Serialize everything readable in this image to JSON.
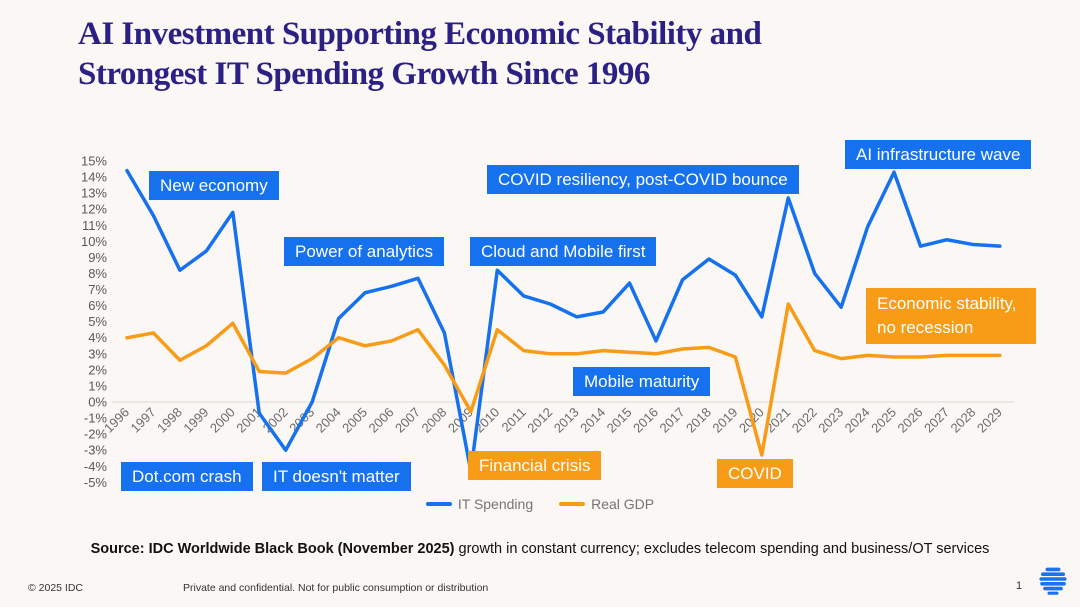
{
  "header": {
    "line1": "AI Investment Supporting Economic Stability and",
    "line2": "Strongest IT Spending Growth Since 1996"
  },
  "chart_data": {
    "type": "line",
    "title": "AI Investment Supporting Economic Stability and Strongest IT Spending Growth Since 1996",
    "x": [
      1996,
      1997,
      1998,
      1999,
      2000,
      2001,
      2002,
      2003,
      2004,
      2005,
      2006,
      2007,
      2008,
      2009,
      2010,
      2011,
      2012,
      2013,
      2014,
      2015,
      2016,
      2017,
      2018,
      2019,
      2020,
      2021,
      2022,
      2023,
      2024,
      2025,
      2026,
      2027,
      2028,
      2029
    ],
    "series": [
      {
        "name": "IT Spending",
        "color": "#1571EE",
        "values": [
          14.4,
          11.6,
          8.2,
          9.4,
          11.8,
          -0.7,
          -3.0,
          0.0,
          5.2,
          6.8,
          7.2,
          7.7,
          4.3,
          -4.3,
          8.2,
          6.6,
          6.1,
          5.3,
          5.6,
          7.4,
          3.8,
          7.6,
          8.9,
          7.9,
          5.3,
          12.7,
          8.0,
          5.9,
          10.9,
          14.3,
          9.7,
          10.1,
          9.8,
          9.7
        ]
      },
      {
        "name": "Real GDP",
        "color": "#F89C18",
        "values": [
          4.0,
          4.3,
          2.6,
          3.5,
          4.9,
          1.9,
          1.8,
          2.7,
          4.0,
          3.5,
          3.8,
          4.5,
          2.3,
          -0.6,
          4.5,
          3.2,
          3.0,
          3.0,
          3.2,
          3.1,
          3.0,
          3.3,
          3.4,
          2.8,
          -3.3,
          6.1,
          3.2,
          2.7,
          2.9,
          2.8,
          2.8,
          2.9,
          2.9,
          2.9
        ]
      }
    ],
    "xlabel": "",
    "ylabel": "",
    "ylim": [
      -5,
      15
    ],
    "ytick_step": 1,
    "ytick_suffix": "%",
    "grid": "zero-line-only",
    "legend_position": "bottom-center"
  },
  "annotations": [
    {
      "id": "new-economy",
      "label": "New economy",
      "color": "blue"
    },
    {
      "id": "power-of-analytics",
      "label": "Power of analytics",
      "color": "blue"
    },
    {
      "id": "cloud-and-mobile-first",
      "label": "Cloud and Mobile first",
      "color": "blue"
    },
    {
      "id": "covid-resiliency",
      "label": "COVID resiliency, post-COVID bounce",
      "color": "blue"
    },
    {
      "id": "ai-infrastructure-wave",
      "label": "AI infrastructure wave",
      "color": "blue"
    },
    {
      "id": "mobile-maturity",
      "label": "Mobile maturity",
      "color": "blue"
    },
    {
      "id": "dotcom-crash",
      "label": "Dot.com crash",
      "color": "blue"
    },
    {
      "id": "it-doesnt-matter",
      "label": "IT doesn't matter",
      "color": "blue"
    },
    {
      "id": "financial-crisis",
      "label": "Financial crisis",
      "color": "orange"
    },
    {
      "id": "covid",
      "label": "COVID",
      "color": "orange"
    },
    {
      "id": "economic-stability",
      "label": "Economic stability, no recession",
      "color": "orange"
    }
  ],
  "footer": {
    "source_bold": "Source: IDC Worldwide Black Book (November 2025)",
    "source_rest": " growth in constant currency; excludes telecom spending and business/OT services",
    "copyright": "© 2025 IDC",
    "confidential": "Private and confidential. Not for public consumption or distribution",
    "page_number": "1",
    "logo": "idc-globe-logo"
  },
  "colors": {
    "accent_blue": "#1571EE",
    "accent_orange": "#F89C18",
    "title_indigo": "#2B2184",
    "background": "#FBF7F4"
  }
}
